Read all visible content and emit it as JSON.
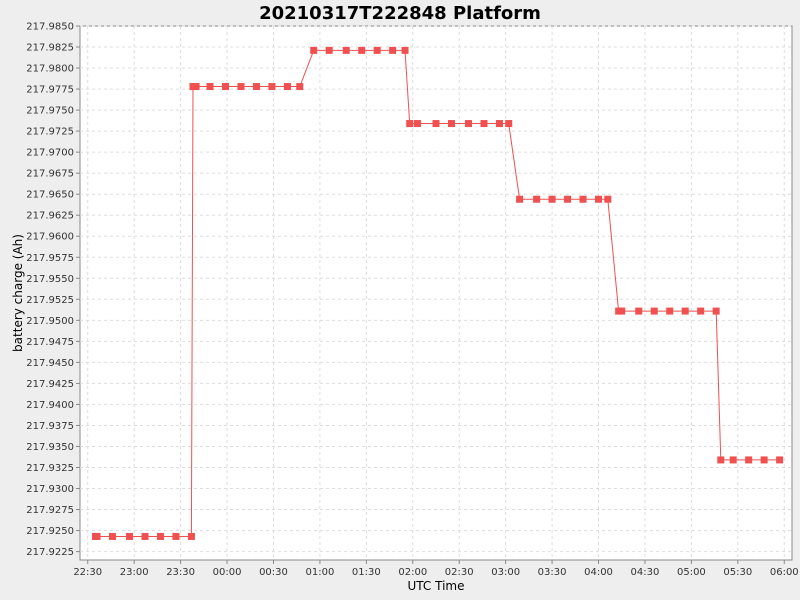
{
  "chart_data": {
    "type": "line",
    "title": "20210317T222848 Platform",
    "xlabel": "UTC Time",
    "ylabel": "battery charge (Ah)",
    "x_unit": "UTC time (HH:MM, 2021-03-17 22:25 to 2021-03-18 06:05)",
    "xlim": [
      "22:25",
      "06:05"
    ],
    "ylim": [
      217.9215,
      217.985
    ],
    "x_ticks": [
      "22:30",
      "23:00",
      "23:30",
      "00:00",
      "00:30",
      "01:00",
      "01:30",
      "02:00",
      "02:30",
      "03:00",
      "03:30",
      "04:00",
      "04:30",
      "05:00",
      "05:30",
      "06:00"
    ],
    "y_ticks": [
      "217.9225",
      "217.9250",
      "217.9275",
      "217.9300",
      "217.9325",
      "217.9350",
      "217.9375",
      "217.9400",
      "217.9425",
      "217.9450",
      "217.9475",
      "217.9500",
      "217.9525",
      "217.9550",
      "217.9575",
      "217.9600",
      "217.9625",
      "217.9650",
      "217.9675",
      "217.9700",
      "217.9725",
      "217.9750",
      "217.9775",
      "217.9800",
      "217.9825",
      "217.9850"
    ],
    "grid": true,
    "series_color": "#f05050",
    "series": [
      {
        "x": [
          "22:35",
          "22:36",
          "22:46",
          "22:57",
          "23:07",
          "23:17",
          "23:27",
          "23:37",
          "23:38",
          "23:40",
          "23:49",
          "23:59",
          "00:09",
          "00:19",
          "00:29",
          "00:39",
          "00:47",
          "00:56",
          "01:06",
          "01:17",
          "01:27",
          "01:37",
          "01:47",
          "01:55",
          "01:58",
          "02:03",
          "02:15",
          "02:25",
          "02:36",
          "02:46",
          "02:56",
          "03:02",
          "03:09",
          "03:20",
          "03:30",
          "03:40",
          "03:50",
          "04:00",
          "04:06",
          "04:13",
          "04:15",
          "04:26",
          "04:36",
          "04:46",
          "04:56",
          "05:06",
          "05:16",
          "05:19",
          "05:27",
          "05:37",
          "05:47",
          "05:57"
        ],
        "y": [
          217.9243,
          217.9243,
          217.9243,
          217.9243,
          217.9243,
          217.9243,
          217.9243,
          217.9243,
          217.9778,
          217.9778,
          217.9778,
          217.9778,
          217.9778,
          217.9778,
          217.9778,
          217.9778,
          217.9778,
          217.9821,
          217.9821,
          217.9821,
          217.9821,
          217.9821,
          217.9821,
          217.9821,
          217.9734,
          217.9734,
          217.9734,
          217.9734,
          217.9734,
          217.9734,
          217.9734,
          217.9734,
          217.9644,
          217.9644,
          217.9644,
          217.9644,
          217.9644,
          217.9644,
          217.9644,
          217.9511,
          217.9511,
          217.9511,
          217.9511,
          217.9511,
          217.9511,
          217.9511,
          217.9511,
          217.9334,
          217.9334,
          217.9334,
          217.9334,
          217.9334
        ]
      }
    ]
  }
}
